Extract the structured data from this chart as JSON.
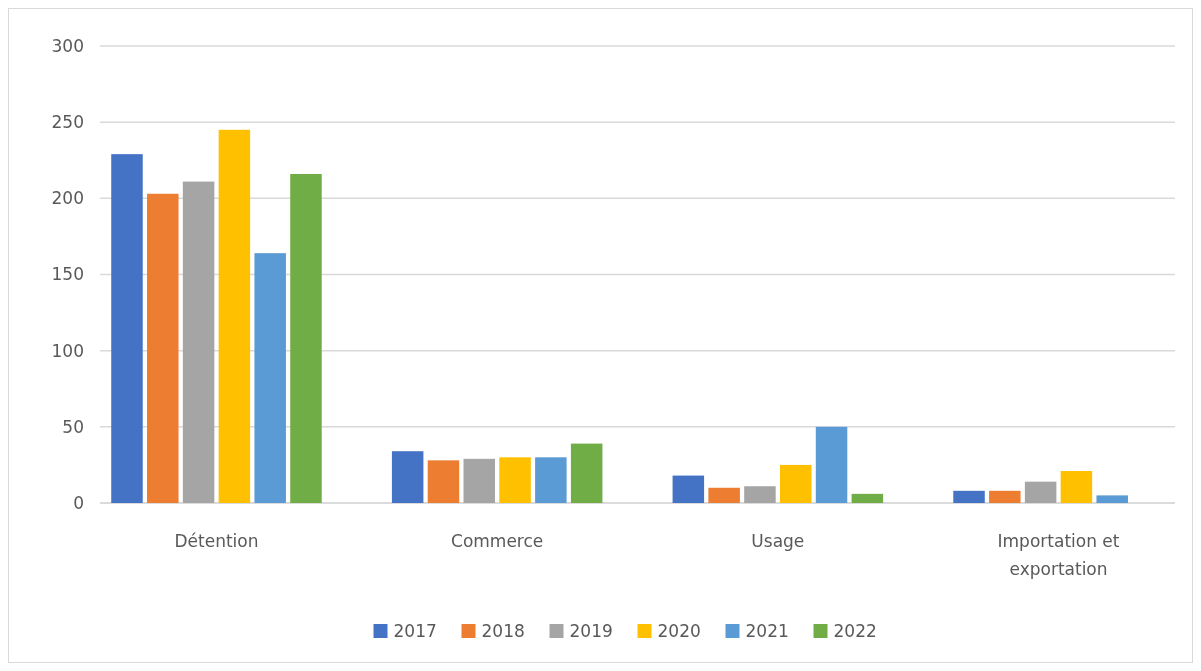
{
  "chart_data": {
    "type": "bar",
    "categories": [
      "Détention",
      "Commerce",
      "Usage",
      "Importation et exportation"
    ],
    "series": [
      {
        "name": "2017",
        "color": "#4472c4",
        "values": [
          229,
          34,
          18,
          8
        ]
      },
      {
        "name": "2018",
        "color": "#ed7d31",
        "values": [
          203,
          28,
          10,
          8
        ]
      },
      {
        "name": "2019",
        "color": "#a5a5a5",
        "values": [
          211,
          29,
          11,
          14
        ]
      },
      {
        "name": "2020",
        "color": "#ffc000",
        "values": [
          245,
          30,
          25,
          21
        ]
      },
      {
        "name": "2021",
        "color": "#5b9bd5",
        "values": [
          164,
          30,
          50,
          5
        ]
      },
      {
        "name": "2022",
        "color": "#70ad47",
        "values": [
          216,
          39,
          6,
          0
        ]
      }
    ],
    "ylim": [
      0,
      300
    ],
    "yticks": [
      0,
      50,
      100,
      150,
      200,
      250,
      300
    ],
    "grid": "y",
    "legend": "bottom"
  }
}
